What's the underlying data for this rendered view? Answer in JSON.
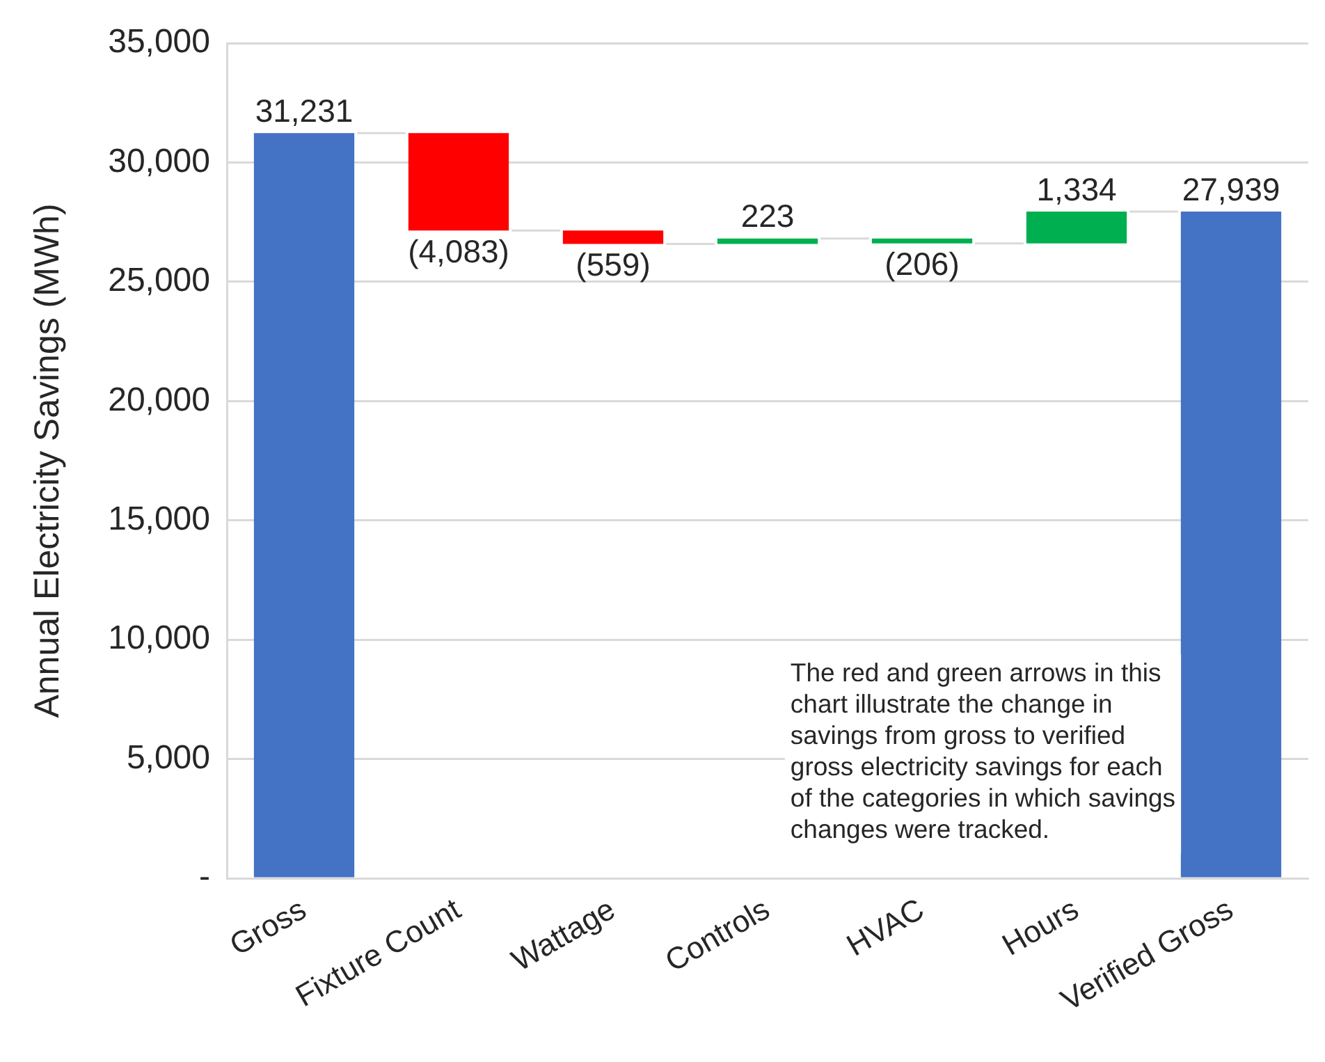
{
  "chart_data": {
    "type": "bar",
    "ylabel": "Annual Electricity Savings (MWh)",
    "categories": [
      "Gross",
      "Fixture Count",
      "Wattage",
      "Controls",
      "HVAC",
      "Hours",
      "Verified Gross"
    ],
    "values": [
      31231,
      -4083,
      -559,
      223,
      -206,
      1334,
      27939
    ],
    "base": [
      0,
      31231,
      27148,
      26589,
      26812,
      26606,
      0
    ],
    "colors": [
      "#4472c4",
      "#ff0000",
      "#ff0000",
      "#00b050",
      "#00b050",
      "#00b050",
      "#4472c4"
    ],
    "value_labels": [
      "31,231",
      "(4,083)",
      "(559)",
      "223",
      "(206)",
      "1,334",
      "27,939"
    ],
    "ylim": [
      0,
      35000
    ],
    "yticks": [
      {
        "value": 0,
        "label": "-"
      },
      {
        "value": 5000,
        "label": "5,000"
      },
      {
        "value": 10000,
        "label": "10,000"
      },
      {
        "value": 15000,
        "label": "15,000"
      },
      {
        "value": 20000,
        "label": "20,000"
      },
      {
        "value": 25000,
        "label": "25,000"
      },
      {
        "value": 30000,
        "label": "30,000"
      },
      {
        "value": 35000,
        "label": "35,000"
      }
    ],
    "grid": "y",
    "annotations": [
      "The red and green arrows in this chart illustrate the change in savings from gross to verified gross electricity savings for each of the categories in which savings changes were tracked."
    ]
  }
}
